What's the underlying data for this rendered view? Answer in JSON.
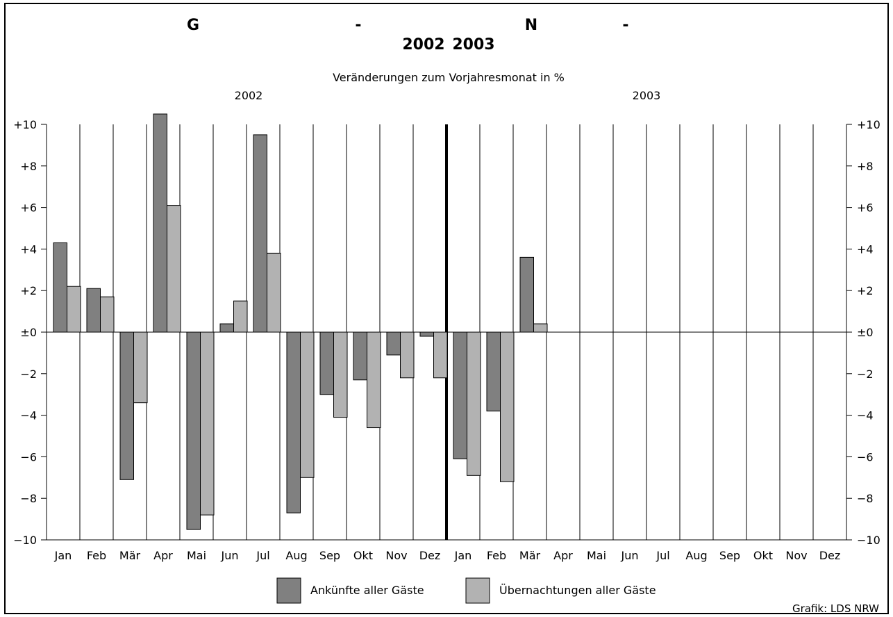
{
  "chart_data": {
    "type": "bar",
    "title_fragments": [
      "G",
      "-",
      "N",
      "-"
    ],
    "title_years": [
      "2002",
      "2003"
    ],
    "subtitle": "Veränderungen zum Vorjahresmonat in %",
    "year_labels": [
      "2002",
      "2003"
    ],
    "categories": [
      "Jan",
      "Feb",
      "Mär",
      "Apr",
      "Mai",
      "Jun",
      "Jul",
      "Aug",
      "Sep",
      "Okt",
      "Nov",
      "Dez",
      "Jan",
      "Feb",
      "Mär",
      "Apr",
      "Mai",
      "Jun",
      "Jul",
      "Aug",
      "Sep",
      "Okt",
      "Nov",
      "Dez"
    ],
    "series": [
      {
        "name": "Ankünfte aller Gäste",
        "color": "#808080",
        "values": [
          4.3,
          2.1,
          -7.1,
          10.5,
          -9.5,
          0.4,
          9.5,
          -8.7,
          -3.0,
          -2.3,
          -1.1,
          -0.2,
          -6.1,
          -3.8,
          3.6,
          null,
          null,
          null,
          null,
          null,
          null,
          null,
          null,
          null
        ]
      },
      {
        "name": "Übernachtungen aller Gäste",
        "color": "#b2b2b2",
        "values": [
          2.2,
          1.7,
          -3.4,
          6.1,
          -8.8,
          1.5,
          3.8,
          -7.0,
          -4.1,
          -4.6,
          -2.2,
          -2.2,
          -6.9,
          -7.2,
          0.4,
          null,
          null,
          null,
          null,
          null,
          null,
          null,
          null,
          null
        ]
      }
    ],
    "ylim": [
      -10,
      10
    ],
    "yticks": [
      {
        "v": 10,
        "label": "+10"
      },
      {
        "v": 8,
        "label": "+8"
      },
      {
        "v": 6,
        "label": "+6"
      },
      {
        "v": 4,
        "label": "+4"
      },
      {
        "v": 2,
        "label": "+2"
      },
      {
        "v": 0,
        "label": "±0"
      },
      {
        "v": -2,
        "label": "−2"
      },
      {
        "v": -4,
        "label": "−4"
      },
      {
        "v": -6,
        "label": "−6"
      },
      {
        "v": -8,
        "label": "−8"
      },
      {
        "v": -10,
        "label": "−10"
      }
    ],
    "legend_position": "bottom-center",
    "credit": "Grafik: LDS NRW"
  }
}
